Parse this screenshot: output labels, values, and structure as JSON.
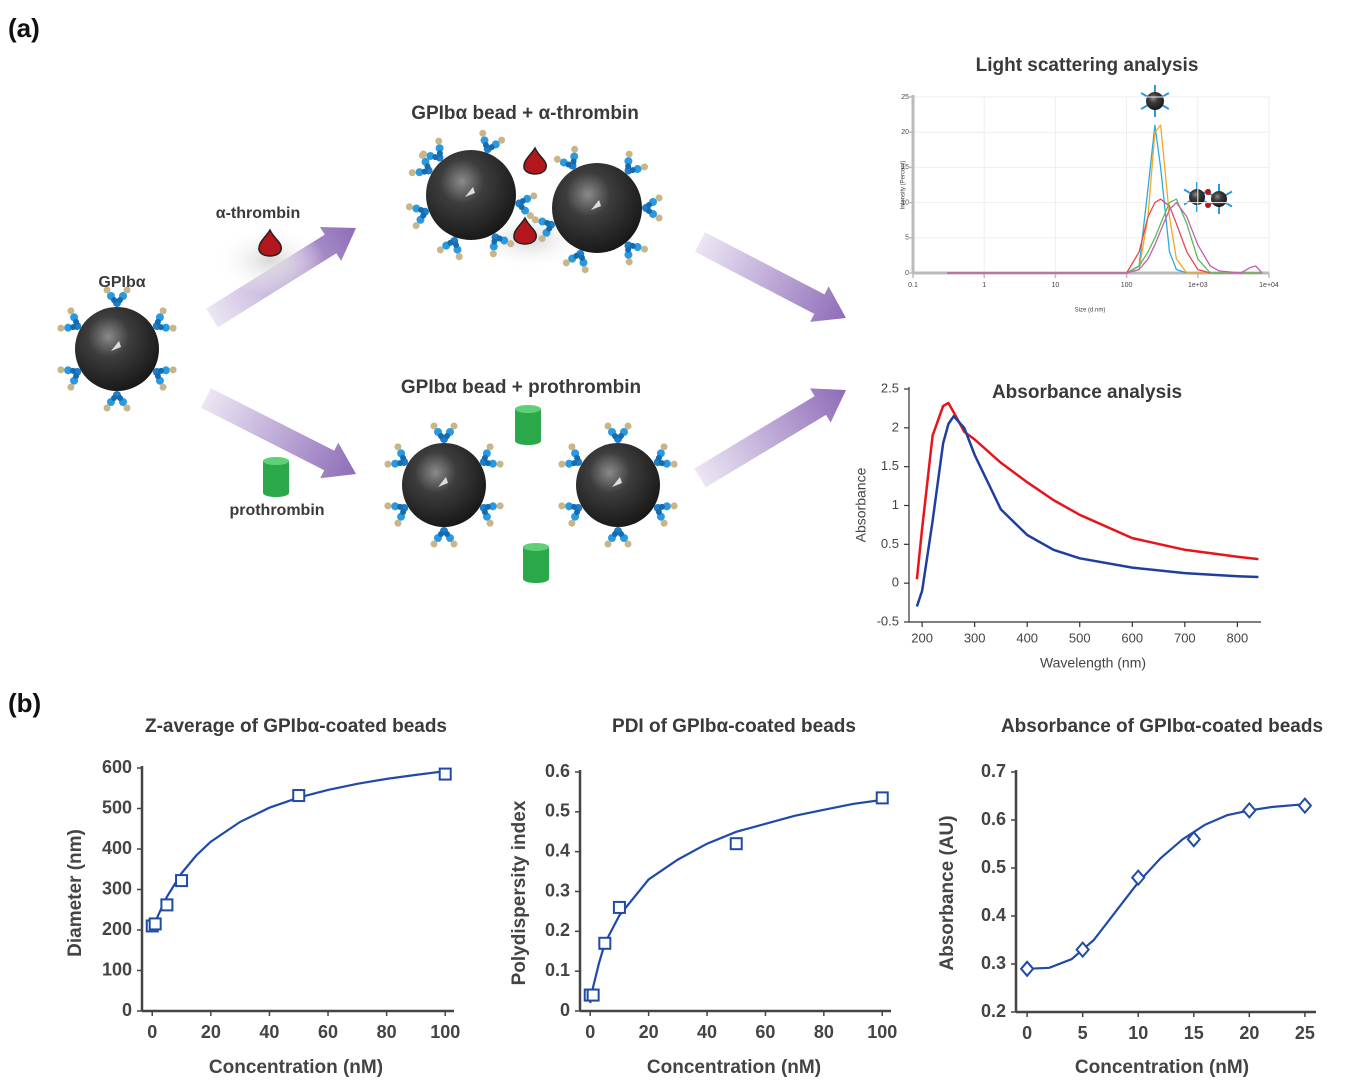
{
  "panel_labels": {
    "a": "(a)",
    "b": "(b)"
  },
  "diagram": {
    "bead_label": "GPIbα",
    "thrombin_label": "α-thrombin",
    "prothrombin_label": "prothrombin",
    "thrombin_result": "GPIbα bead + α-thrombin",
    "prothrombin_result": "GPIbα bead + prothrombin"
  },
  "chart_data": [
    {
      "type": "line",
      "title": "Light scattering analysis",
      "xlabel": "Size (d.nm)",
      "ylabel": "Intensity (Percent)",
      "xscale": "log",
      "grid": true,
      "x": [
        0.3,
        100,
        150,
        200,
        250,
        300,
        400,
        500,
        700,
        1000,
        1500,
        2000,
        4000,
        5500,
        6500,
        8000
      ],
      "series": [
        {
          "color": "#29abe2",
          "values": [
            0,
            0,
            1,
            12,
            21,
            15,
            3,
            0.5,
            0,
            0,
            0,
            0,
            0,
            0,
            0,
            0
          ]
        },
        {
          "color": "#f5a623",
          "values": [
            0,
            0,
            0.5,
            8,
            20,
            21,
            8,
            2,
            0,
            0,
            0,
            0,
            0,
            0,
            0,
            0
          ]
        },
        {
          "color": "#e8474c",
          "values": [
            0,
            0,
            3,
            8,
            10,
            10.5,
            9.5,
            7,
            3,
            0.5,
            0,
            0,
            0,
            0,
            0,
            0
          ]
        },
        {
          "color": "#5cb85c",
          "values": [
            0,
            0,
            1,
            3,
            5,
            7,
            10,
            10.5,
            7,
            2,
            0,
            0,
            0,
            0,
            0,
            0
          ]
        },
        {
          "color": "#c060b0",
          "values": [
            0,
            0,
            0.5,
            2,
            4,
            6,
            9,
            10,
            8,
            4,
            1,
            0.3,
            0,
            0.8,
            1,
            0
          ]
        }
      ],
      "xlim": [
        0.1,
        10000
      ],
      "ylim": [
        0,
        25
      ],
      "xticks": [
        0.1,
        1,
        10,
        100,
        {
          "value": 1000,
          "label": "1e+03"
        },
        {
          "value": 10000,
          "label": "1e+04"
        }
      ],
      "yticks": [
        0,
        5,
        10,
        15,
        20,
        25
      ]
    },
    {
      "type": "line",
      "title": "Absorbance analysis",
      "xlabel": "Wavelength (nm)",
      "ylabel": "Absorbance",
      "x": [
        190,
        200,
        220,
        240,
        250,
        260,
        280,
        300,
        350,
        400,
        450,
        500,
        600,
        700,
        800,
        840
      ],
      "series": [
        {
          "color": "#e8141b",
          "values": [
            0.05,
            0.7,
            1.9,
            2.28,
            2.32,
            2.2,
            1.95,
            1.85,
            1.55,
            1.3,
            1.07,
            0.88,
            0.58,
            0.43,
            0.34,
            0.31
          ]
        },
        {
          "color": "#1f3fa0",
          "values": [
            -0.3,
            -0.1,
            0.8,
            1.8,
            2.05,
            2.15,
            2.0,
            1.65,
            0.95,
            0.62,
            0.43,
            0.32,
            0.2,
            0.13,
            0.09,
            0.08
          ]
        }
      ],
      "xlim": [
        175,
        845
      ],
      "ylim": [
        -0.5,
        2.5
      ],
      "xticks": [
        200,
        300,
        400,
        500,
        600,
        700,
        800
      ],
      "yticks": [
        -0.5,
        0,
        0.5,
        1,
        1.5,
        2,
        2.5
      ]
    },
    {
      "type": "scatter",
      "title": "Z-average of GPIbα-coated beads",
      "xlabel": "Concentration (nM)",
      "ylabel": "Diameter (nm)",
      "marker": "square",
      "color": "#1f4aa8",
      "x": [
        0,
        1,
        5,
        10,
        50,
        100
      ],
      "values": [
        210,
        215,
        262,
        322,
        532,
        585
      ],
      "fit": {
        "x": [
          0,
          2,
          5,
          10,
          15,
          20,
          30,
          40,
          50,
          60,
          70,
          80,
          90,
          100
        ],
        "values": [
          200,
          236,
          282,
          340,
          384,
          418,
          467,
          502,
          527,
          546,
          561,
          573,
          583,
          592
        ]
      },
      "xlim": [
        -3.5,
        103
      ],
      "ylim": [
        0,
        600
      ],
      "xticks": [
        0,
        20,
        40,
        60,
        80,
        100
      ],
      "yticks": [
        0,
        100,
        200,
        300,
        400,
        500,
        600
      ]
    },
    {
      "type": "scatter",
      "title": "PDI of GPIbα-coated beads",
      "xlabel": "Concentration (nM)",
      "ylabel": "Polydispersity index",
      "marker": "square",
      "color": "#1f4aa8",
      "x": [
        0,
        1,
        5,
        10,
        50,
        100
      ],
      "values": [
        0.04,
        0.04,
        0.17,
        0.26,
        0.42,
        0.535
      ],
      "fit": {
        "x": [
          0,
          1,
          3,
          5,
          10,
          20,
          30,
          40,
          50,
          60,
          70,
          80,
          90,
          100
        ],
        "values": [
          0.02,
          0.06,
          0.12,
          0.17,
          0.24,
          0.33,
          0.38,
          0.42,
          0.45,
          0.47,
          0.49,
          0.505,
          0.52,
          0.53
        ]
      },
      "xlim": [
        -3.5,
        103
      ],
      "ylim": [
        0,
        0.6
      ],
      "xticks": [
        0,
        20,
        40,
        60,
        80,
        100
      ],
      "yticks": [
        0,
        0.1,
        0.2,
        0.3,
        0.4,
        0.5,
        0.6
      ]
    },
    {
      "type": "scatter",
      "title": "Absorbance of GPIbα-coated beads",
      "xlabel": "Concentration (nM)",
      "ylabel": "Absorbance (AU)",
      "marker": "diamond",
      "color": "#1f4aa8",
      "x": [
        0,
        5,
        10,
        15,
        20,
        25
      ],
      "values": [
        0.29,
        0.33,
        0.48,
        0.56,
        0.62,
        0.63
      ],
      "fit": {
        "x": [
          0,
          2,
          4,
          6,
          8,
          10,
          12,
          14,
          16,
          18,
          20,
          22,
          25
        ],
        "values": [
          0.29,
          0.292,
          0.31,
          0.35,
          0.41,
          0.47,
          0.52,
          0.56,
          0.59,
          0.61,
          0.62,
          0.627,
          0.633
        ]
      },
      "xlim": [
        -1,
        26
      ],
      "ylim": [
        0.2,
        0.7
      ],
      "xticks": [
        0,
        5,
        10,
        15,
        20,
        25
      ],
      "yticks": [
        0.2,
        0.3,
        0.4,
        0.5,
        0.6,
        0.7
      ]
    }
  ]
}
